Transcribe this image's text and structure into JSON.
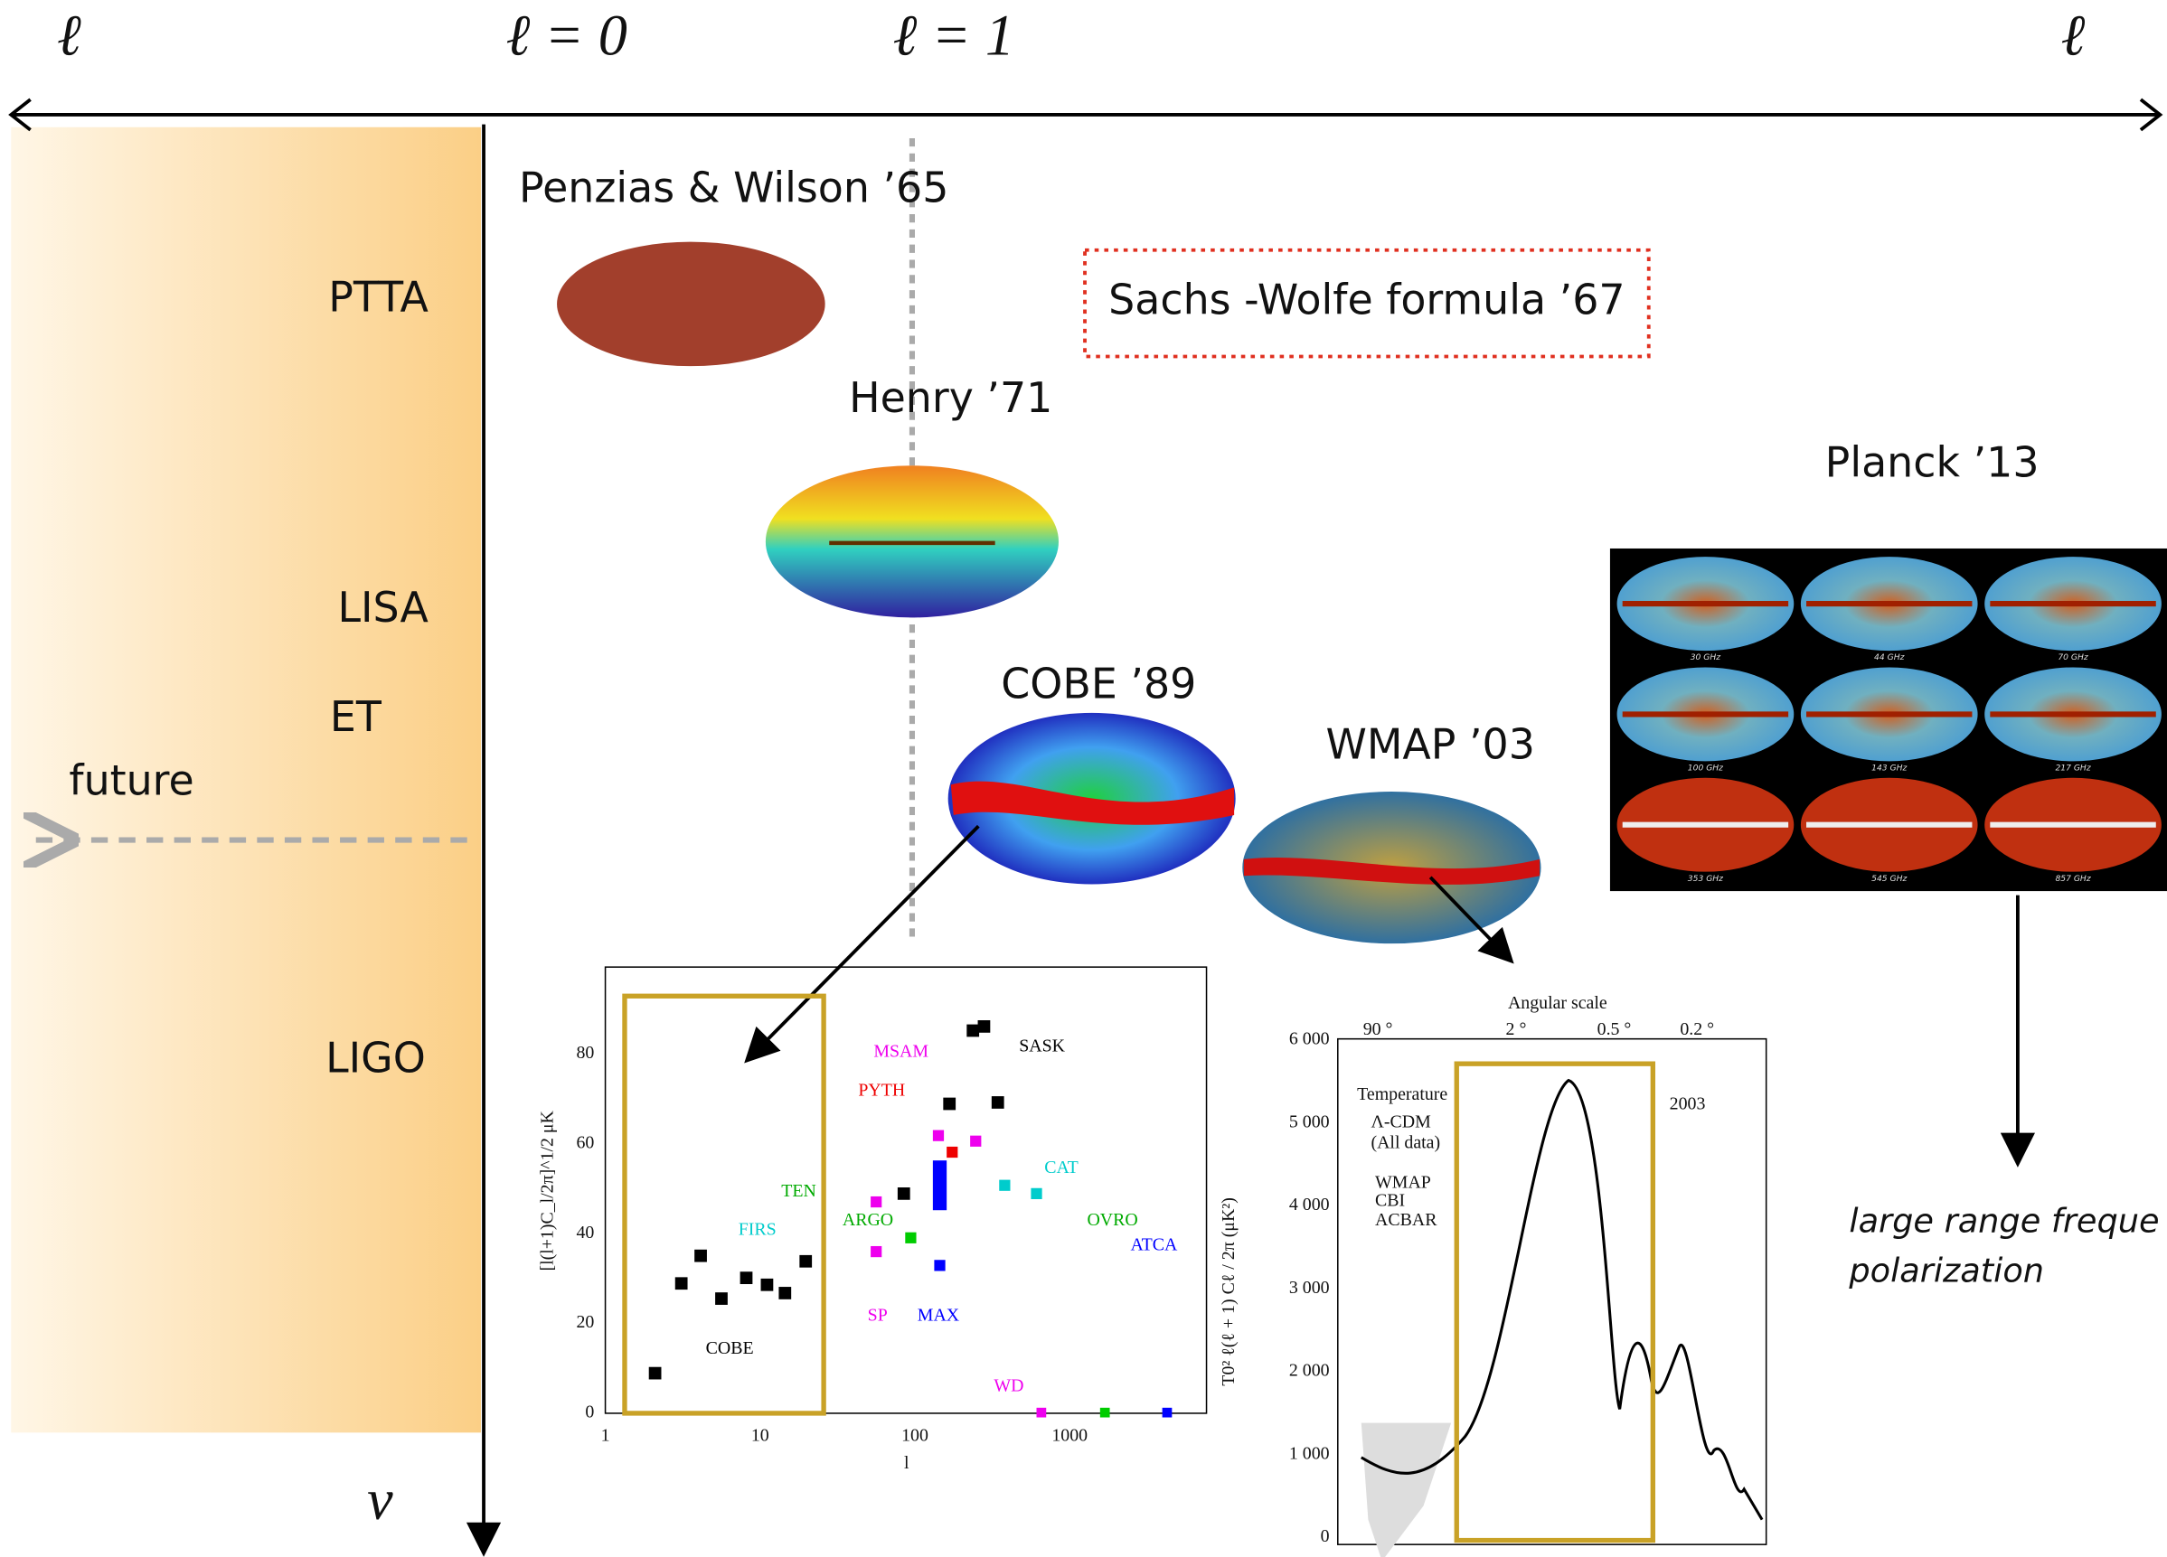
{
  "axis": {
    "left": "ℓ",
    "zero": "ℓ = 0",
    "one": "ℓ = 1",
    "right": "ℓ",
    "frequency": "ν"
  },
  "detectors": [
    "PTTA",
    "LISA",
    "ET",
    "LIGO"
  ],
  "future": "future",
  "experiments": {
    "penzias": "Penzias & Wilson ’65",
    "sachs_wolfe": "Sachs -Wolfe formula ’67",
    "henry": "Henry ’71",
    "cobe": "COBE ’89",
    "wmap": "WMAP ’03",
    "planck": "Planck ’13"
  },
  "planck_maps": [
    "30 GHz",
    "44 GHz",
    "70 GHz",
    "100 GHz",
    "143 GHz",
    "217 GHz",
    "353 GHz",
    "545 GHz",
    "857 GHz"
  ],
  "planck_note": [
    "large range freque",
    "polarization"
  ],
  "cobe_plot": {
    "y_label": "[l(l+1)C_l/2π]^1/2 μK",
    "x_label": "l",
    "yticks": [
      "0",
      "20",
      "40",
      "60",
      "80"
    ],
    "xticks": [
      "1",
      "10",
      "100",
      "1000"
    ],
    "labels": [
      "COBE",
      "FIRS",
      "TEN",
      "ARGO",
      "SP",
      "MAX",
      "MSAM",
      "PYTH",
      "SASK",
      "CAT",
      "OVRO",
      "ATCA",
      "WD"
    ]
  },
  "wmap_plot": {
    "top_title": "Angular scale",
    "top_ticks": [
      "90 °",
      "2 °",
      "0.5 °",
      "0.2 °"
    ],
    "yticks": [
      "0",
      "1 000",
      "2 000",
      "3 000",
      "4 000",
      "5 000",
      "6 000"
    ],
    "y_label": "T0² ℓ(ℓ + 1) Cℓ / 2π  (μK²)",
    "title": "Temperature",
    "year": "2003",
    "legend": [
      "Λ-CDM",
      "(All data)",
      "WMAP",
      "CBI",
      "ACBAR"
    ]
  }
}
